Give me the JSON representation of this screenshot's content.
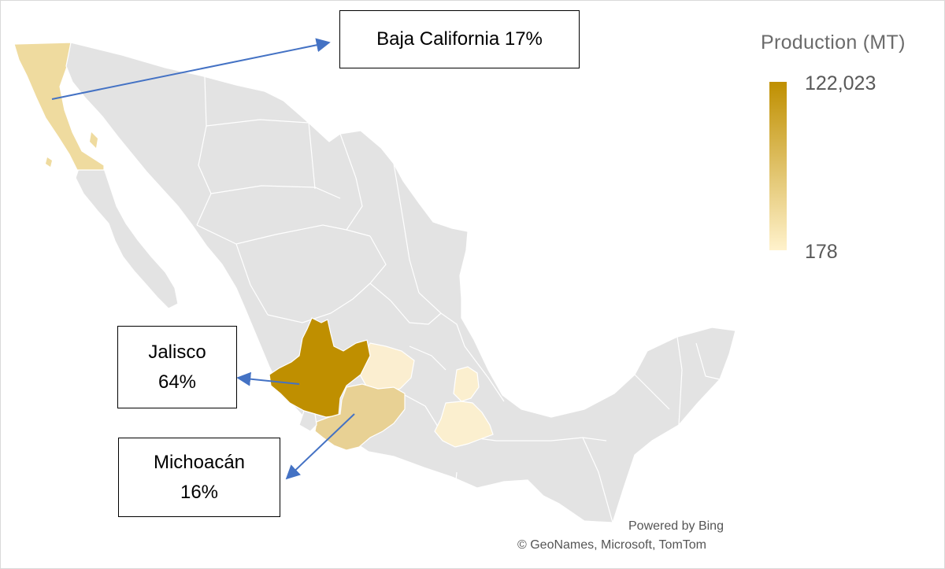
{
  "legend": {
    "title": "Production (MT)",
    "max_label": "122,023",
    "min_label": "178",
    "max_value": 122023,
    "min_value": 178,
    "color_high": "#bf8f00",
    "color_low": "#fff2cc"
  },
  "colors": {
    "land": "#e3e3e3",
    "border": "#ffffff",
    "arrow": "#4472c4"
  },
  "callouts": {
    "baja": {
      "label": "Baja California 17%",
      "state": "Baja California",
      "share_pct": 17
    },
    "jalisco": {
      "line1": "Jalisco",
      "line2": "64%",
      "state": "Jalisco",
      "share_pct": 64
    },
    "michoacan": {
      "line1": "Michoacán",
      "line2": "16%",
      "state": "Michoacán",
      "share_pct": 16
    }
  },
  "regions_highlighted": {
    "jalisco": {
      "fill": "#bf8f00"
    },
    "michoacan": {
      "fill": "#e8d194"
    },
    "baja": {
      "fill": "#efdb9f"
    },
    "guanajuato": {
      "fill": "#fbeed0"
    },
    "puebla": {
      "fill": "#fbefcf"
    }
  },
  "attribution": {
    "powered": "Powered by Bing",
    "copyright": "© GeoNames, Microsoft, TomTom"
  }
}
